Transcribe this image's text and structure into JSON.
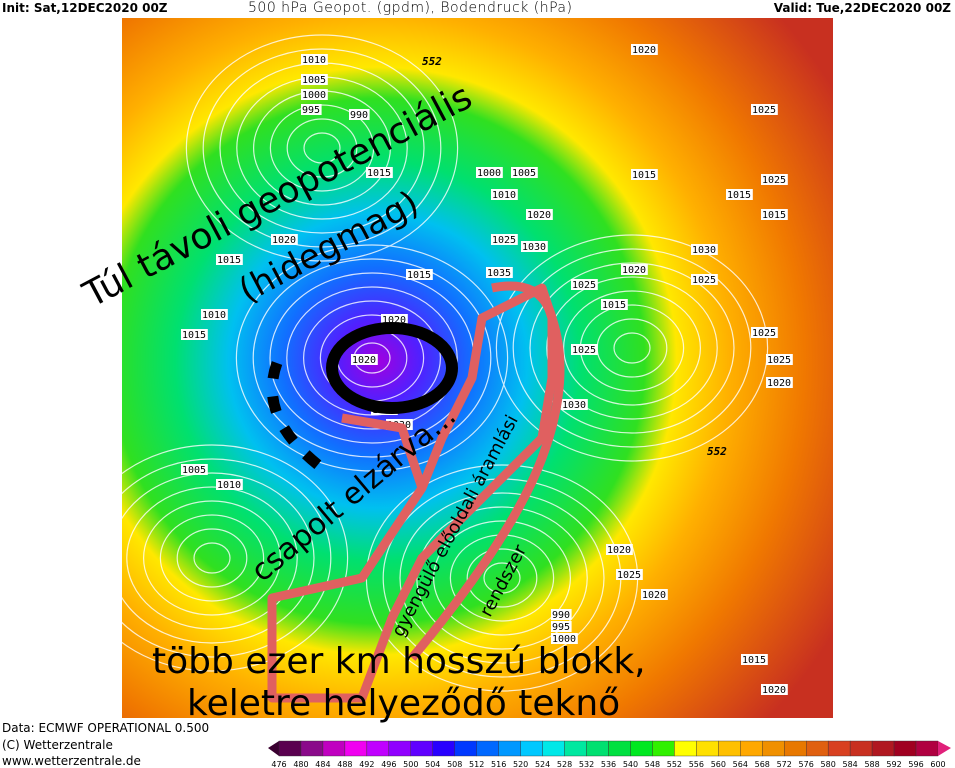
{
  "header": {
    "init": "Init: Sat,12DEC2020 00Z",
    "title": "500 hPa Geopot. (gpdm), Bodendruck (hPa)",
    "valid": "Valid: Tue,22DEC2020 00Z"
  },
  "footer": {
    "data": "Data: ECMWF OPERATIONAL 0.500",
    "copyright": "(C) Wetterzentrale",
    "url": "www.wetterzentrale.de"
  },
  "colorbar": {
    "labels": [
      "476",
      "480",
      "484",
      "488",
      "492",
      "496",
      "500",
      "504",
      "508",
      "512",
      "516",
      "520",
      "524",
      "528",
      "532",
      "536",
      "540",
      "548",
      "552",
      "556",
      "560",
      "564",
      "568",
      "572",
      "576",
      "580",
      "584",
      "588",
      "592",
      "596",
      "600"
    ],
    "colors": [
      "#5a004f",
      "#8a0a8a",
      "#c000c0",
      "#f000f0",
      "#c000ff",
      "#9000ff",
      "#6000ff",
      "#2800ff",
      "#0038ff",
      "#0068ff",
      "#0098ff",
      "#00c8ff",
      "#00e8e8",
      "#00e8a0",
      "#00e070",
      "#00e040",
      "#00e820",
      "#30f000",
      "#ffff00",
      "#ffe000",
      "#ffc000",
      "#ffa800",
      "#f09000",
      "#e87800",
      "#e06010",
      "#d84020",
      "#c83020",
      "#b01820",
      "#a00020",
      "#b00040"
    ]
  },
  "map": {
    "colors": {
      "core": "#8800e0",
      "blue": "#1060ff",
      "cyan": "#00c8f0",
      "green": "#20e040",
      "yellow": "#ffe000",
      "orange": "#f09000",
      "red": "#d04020",
      "contour": "#ffffff",
      "annotation_pink": "#e06060",
      "annotation_black": "#000000"
    },
    "geopotential_labels": [
      "552",
      "552"
    ],
    "pressure_labels": [
      {
        "t": "1010"
      },
      {
        "t": "1005"
      },
      {
        "t": "1000"
      },
      {
        "t": "995"
      },
      {
        "t": "990"
      },
      {
        "t": "1015"
      },
      {
        "t": "1000"
      },
      {
        "t": "1005"
      },
      {
        "t": "1010"
      },
      {
        "t": "1020"
      },
      {
        "t": "1025"
      },
      {
        "t": "1030"
      },
      {
        "t": "1035"
      },
      {
        "t": "1015"
      },
      {
        "t": "1020"
      },
      {
        "t": "1020"
      },
      {
        "t": "1025"
      },
      {
        "t": "1020"
      },
      {
        "t": "1015"
      },
      {
        "t": "1025"
      },
      {
        "t": "1030"
      },
      {
        "t": "1020"
      },
      {
        "t": "1025"
      },
      {
        "t": "1015"
      },
      {
        "t": "1020"
      },
      {
        "t": "1015"
      },
      {
        "t": "1010"
      },
      {
        "t": "1015"
      },
      {
        "t": "1005"
      },
      {
        "t": "1010"
      },
      {
        "t": "1030"
      },
      {
        "t": "1025"
      },
      {
        "t": "1030"
      },
      {
        "t": "1025"
      },
      {
        "t": "1025"
      },
      {
        "t": "1025"
      },
      {
        "t": "1020"
      },
      {
        "t": "1020"
      },
      {
        "t": "990"
      },
      {
        "t": "995"
      },
      {
        "t": "1000"
      },
      {
        "t": "1020"
      },
      {
        "t": "1015"
      },
      {
        "t": "1015"
      },
      {
        "t": "1025"
      },
      {
        "t": "1020"
      },
      {
        "t": "1025"
      },
      {
        "t": "1015"
      }
    ],
    "annotations": {
      "top": "Túl távoli geopotenciális",
      "top2": "(hidegmag)",
      "middle": "csapolt elzárva...",
      "side": "gyengülő előoldali áramlási",
      "side2": "rendszer",
      "bottom1": "több ezer km hosszú blokk,",
      "bottom2": "keletre helyeződő teknő"
    }
  }
}
